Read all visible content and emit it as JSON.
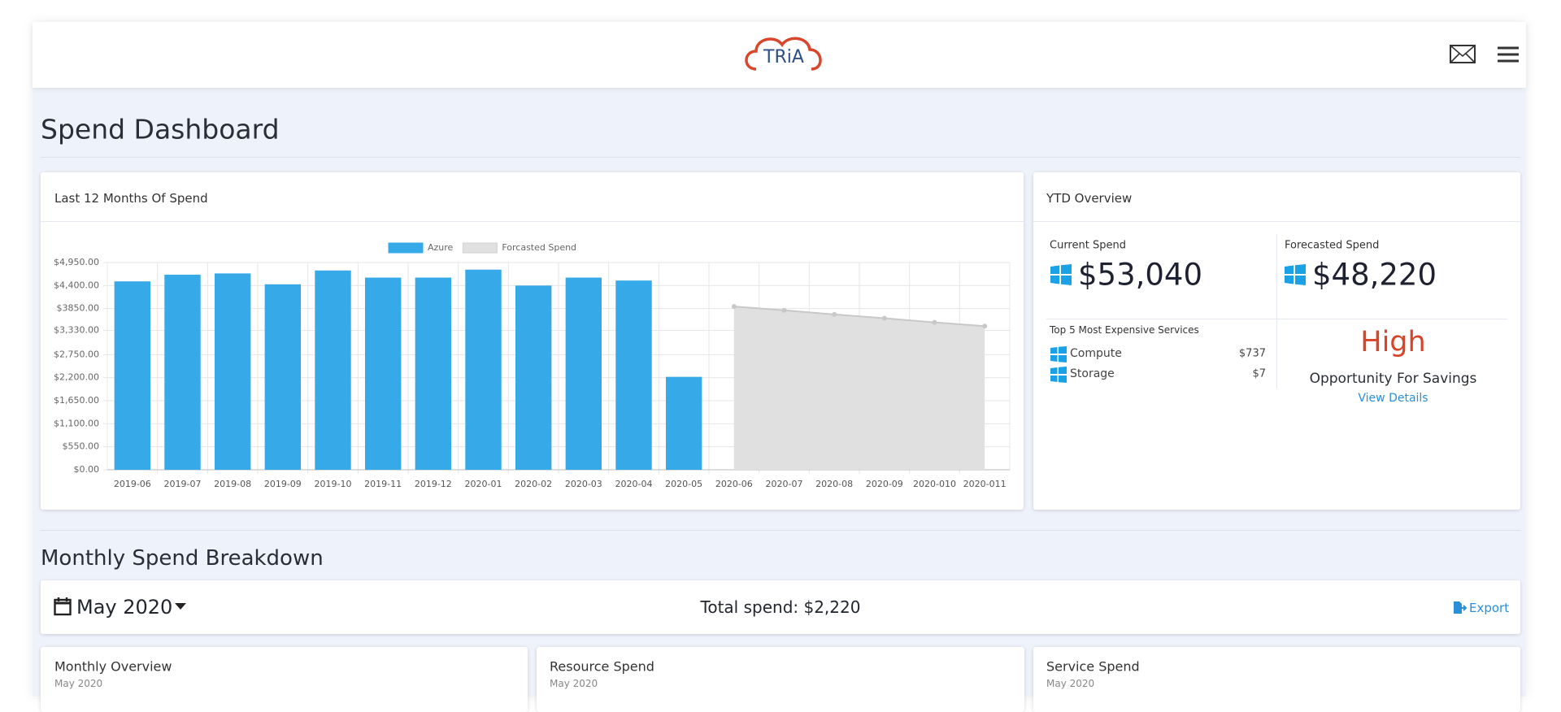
{
  "header": {
    "logo": "TRiA"
  },
  "page_title": "Spend Dashboard",
  "chart_panel": {
    "title": "Last 12 Months Of Spend"
  },
  "chart_data": {
    "type": "bar",
    "categories": [
      "2019-06",
      "2019-07",
      "2019-08",
      "2019-09",
      "2019-10",
      "2019-11",
      "2019-12",
      "2020-01",
      "2020-02",
      "2020-03",
      "2020-04",
      "2020-05",
      "2020-06",
      "2020-07",
      "2020-08",
      "2020-09",
      "2020-010",
      "2020-011"
    ],
    "series": [
      {
        "name": "Azure",
        "type": "bar",
        "color": "#36a9e9",
        "values": [
          4500,
          4660,
          4690,
          4430,
          4760,
          4590,
          4590,
          4780,
          4400,
          4590,
          4520,
          2220,
          null,
          null,
          null,
          null,
          null,
          null
        ]
      },
      {
        "name": "Forcasted Spend",
        "type": "area",
        "color": "#e0e0e0",
        "values": [
          null,
          null,
          null,
          null,
          null,
          null,
          null,
          null,
          null,
          null,
          null,
          null,
          3900,
          3810,
          3710,
          3620,
          3520,
          3430
        ]
      }
    ],
    "ylim": [
      0,
      4950
    ],
    "yticks": [
      {
        "value": 0,
        "label": "$0.00"
      },
      {
        "value": 550,
        "label": "$550.00"
      },
      {
        "value": 1100,
        "label": "$1,100.00"
      },
      {
        "value": 1650,
        "label": "$1,650.00"
      },
      {
        "value": 2200,
        "label": "$2,200.00"
      },
      {
        "value": 2750,
        "label": "$2,750.00"
      },
      {
        "value": 3330,
        "label": "$3,330.00"
      },
      {
        "value": 3850,
        "label": "$3850.00"
      },
      {
        "value": 4400,
        "label": "$4,400.00"
      },
      {
        "value": 4950,
        "label": "$4,950.00"
      }
    ],
    "grid": true,
    "legend": "top"
  },
  "ytd": {
    "title": "YTD Overview",
    "current_label": "Current Spend",
    "current_value": "$53,040",
    "forecast_label": "Forecasted Spend",
    "forecast_value": "$48,220",
    "top_services_title": "Top 5 Most Expensive Services",
    "services": [
      [
        "Compute",
        "$737"
      ],
      [
        "Storage",
        "$7"
      ]
    ],
    "savings_level": "High",
    "savings_label": "Opportunity For Savings",
    "savings_link": "View Details"
  },
  "breakdown": {
    "title": "Monthly Spend Breakdown",
    "month": "May 2020",
    "total": "Total spend: $2,220",
    "export": "Export",
    "cards": [
      {
        "title": "Monthly Overview",
        "subtitle": "May 2020"
      },
      {
        "title": "Resource Spend",
        "subtitle": "May 2020"
      },
      {
        "title": "Service Spend",
        "subtitle": "May 2020"
      }
    ]
  }
}
